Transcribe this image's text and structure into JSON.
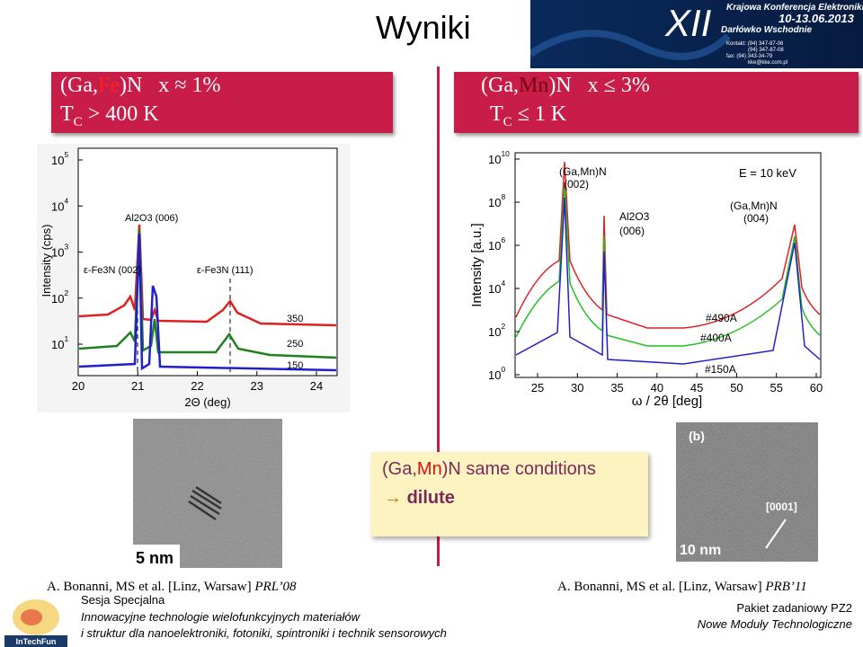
{
  "header": {
    "title": "Wyniki",
    "banner": {
      "edition": "XII",
      "name": "Krajowa Konferencja Elektroniki",
      "dates": "10-13.06.2013",
      "place": "Darłówko Wschodnie",
      "contact": [
        "Kontakt: (94) 347-87-06",
        "(94) 347-87-08",
        "fax: (94) 343-34-79",
        "kke@kke.com.pl"
      ]
    }
  },
  "left_box": {
    "line1": [
      "(Ga,",
      "Fe",
      ")N   x ≈ 1%"
    ],
    "line2": [
      "T",
      "C",
      " > 400 K"
    ]
  },
  "right_box": {
    "line1": [
      "(Ga,",
      "Mn",
      ")N   x ≤ 3%"
    ],
    "line2": [
      "T",
      "C",
      " ≤ 1 K"
    ]
  },
  "figure_left": {
    "y_label": "Intensity (cps)",
    "x_label": "2Θ (deg)",
    "x_ticks": [
      "20",
      "21",
      "22",
      "23",
      "24"
    ],
    "y_ticks": [
      {
        "base": "10",
        "exp": "5"
      },
      {
        "base": "10",
        "exp": "4"
      },
      {
        "base": "10",
        "exp": "3"
      },
      {
        "base": "10",
        "exp": "2"
      },
      {
        "base": "10",
        "exp": "1"
      }
    ],
    "annotations": [
      "Al2O3 (006)",
      "ε-Fe3N (002)",
      "ε-Fe3N (111)",
      "350",
      "250",
      "150"
    ]
  },
  "figure_right": {
    "y_label": "Intensity [a.u.]",
    "x_label": "ω / 2θ [deg]",
    "x_ticks": [
      "25",
      "30",
      "35",
      "40",
      "45",
      "50",
      "55",
      "60"
    ],
    "y_ticks": [
      {
        "base": "10",
        "exp": "10"
      },
      {
        "base": "10",
        "exp": "8"
      },
      {
        "base": "10",
        "exp": "6"
      },
      {
        "base": "10",
        "exp": "4"
      },
      {
        "base": "10",
        "exp": "2"
      },
      {
        "base": "10",
        "exp": "0"
      }
    ],
    "annotations": [
      "(Ga,Mn)N",
      "(002)",
      "Al2O3",
      "(006)",
      "E = 10 keV",
      "(Ga,Mn)N",
      "(004)",
      "#490A",
      "#400A",
      "#150A"
    ]
  },
  "tem_left": {
    "scale": "5 nm"
  },
  "tem_right": {
    "panel": "(b)",
    "direction": "[0001]",
    "scale": "10 nm"
  },
  "note_box": {
    "line1": [
      "(Ga,",
      "Mn",
      ")N same conditions"
    ],
    "line2": "dilute"
  },
  "references": {
    "left": [
      "A. Bonanni, MS et al. [Linz, Warsaw] ",
      "PRL’08"
    ],
    "right": [
      "A. Bonanni, MS et al. [Linz, Warsaw] ",
      "PRB’11"
    ]
  },
  "footer": {
    "logo": "InTechFun",
    "session": "Sesja Specjalna",
    "line1": "Innowacyjne technologie wielofunkcyjnych materiałów",
    "line2": "i struktur dla nanoelektroniki, fotoniki, spintroniki i technik sensorowych",
    "package": "Pakiet zadaniowy PZ2",
    "module": "Nowe Moduły Technologiczne"
  }
}
